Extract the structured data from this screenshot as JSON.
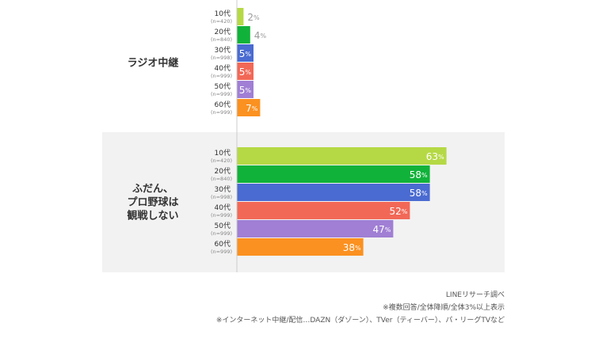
{
  "chart_data": [
    {
      "type": "bar",
      "orientation": "horizontal",
      "group_label": "ラジオ中継",
      "categories": [
        "10代",
        "20代",
        "30代",
        "40代",
        "50代",
        "60代"
      ],
      "sample_sizes": [
        "(n=420)",
        "(n=840)",
        "(n=998)",
        "(n=999)",
        "(n=999)",
        "(n=999)"
      ],
      "values": [
        2,
        4,
        5,
        5,
        5,
        7
      ],
      "unit": "%",
      "colors": [
        "#b5d945",
        "#11b23a",
        "#4a6bd1",
        "#f26857",
        "#a07fd4",
        "#fb9120"
      ],
      "background": "#ffffff"
    },
    {
      "type": "bar",
      "orientation": "horizontal",
      "group_label": [
        "ふだん、",
        "プロ野球は",
        "観戦しない"
      ],
      "categories": [
        "10代",
        "20代",
        "30代",
        "40代",
        "50代",
        "60代"
      ],
      "sample_sizes": [
        "(n=420)",
        "(n=840)",
        "(n=998)",
        "(n=999)",
        "(n=999)",
        "(n=999)"
      ],
      "values": [
        63,
        58,
        58,
        52,
        47,
        38
      ],
      "unit": "%",
      "colors": [
        "#b5d945",
        "#11b23a",
        "#4a6bd1",
        "#f26857",
        "#a07fd4",
        "#fb9120"
      ],
      "background": "#f2f2f2"
    }
  ],
  "notes": {
    "source": "LINEリサーチ調べ",
    "note1": "※複数回答/全体降順/全体3%以上表示",
    "note2": "※インターネット中継/配信…DAZN（ダゾーン）、TVer（ティーバー）、パ・リーグTVなど"
  }
}
